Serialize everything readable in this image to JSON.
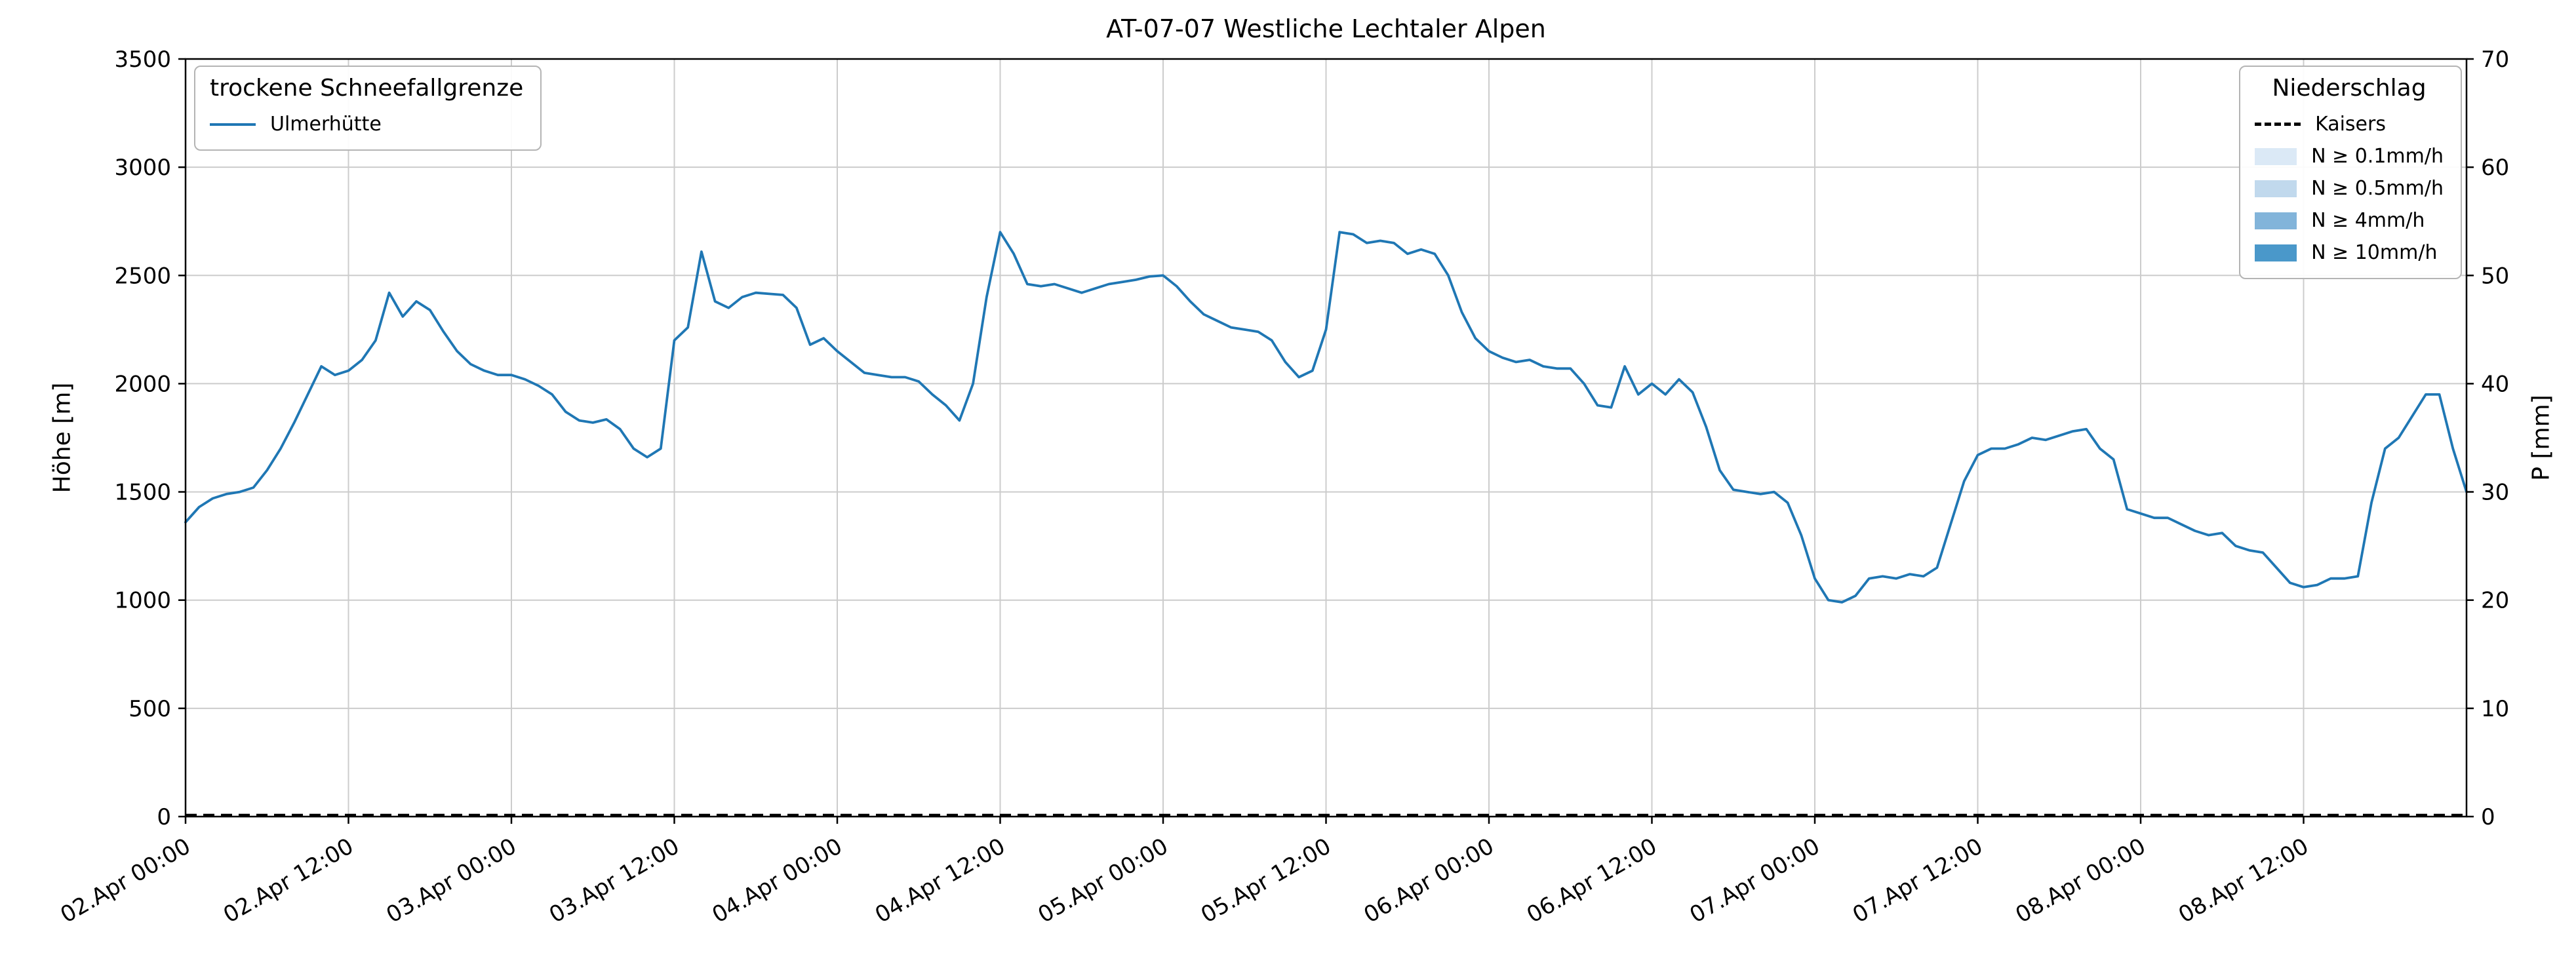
{
  "chart_data": {
    "type": "line",
    "title": "AT-07-07 Westliche Lechtaler Alpen",
    "xlabel": "",
    "ylabel_left": "Höhe [m]",
    "ylabel_right": "P [mm]",
    "ylim_left": [
      0,
      3500
    ],
    "ylim_right": [
      0,
      70
    ],
    "yticks_left": [
      0,
      500,
      1000,
      1500,
      2000,
      2500,
      3000,
      3500
    ],
    "yticks_right": [
      0,
      10,
      20,
      30,
      40,
      50,
      60,
      70
    ],
    "grid": true,
    "x_unit": "hours since 02.Apr 00:00",
    "xlim": [
      0,
      168
    ],
    "x_tick_rotation_deg": 30,
    "xticks": {
      "hours": [
        0,
        12,
        24,
        36,
        48,
        60,
        72,
        84,
        96,
        108,
        120,
        132,
        144,
        156
      ],
      "labels": [
        "02.Apr 00:00",
        "02.Apr 12:00",
        "03.Apr 00:00",
        "03.Apr 12:00",
        "04.Apr 00:00",
        "04.Apr 12:00",
        "05.Apr 00:00",
        "05.Apr 12:00",
        "06.Apr 00:00",
        "06.Apr 12:00",
        "07.Apr 00:00",
        "07.Apr 12:00",
        "08.Apr 00:00",
        "08.Apr 12:00"
      ]
    },
    "series": [
      {
        "name": "Ulmerhütte",
        "axis": "left",
        "color": "#1f77b4",
        "style": "solid",
        "x_start_hour": 0,
        "x_step_hours": 1,
        "values": [
          1360,
          1430,
          1470,
          1490,
          1500,
          1520,
          1600,
          1700,
          1820,
          1950,
          2080,
          2040,
          2060,
          2110,
          2200,
          2420,
          2310,
          2380,
          2340,
          2240,
          2150,
          2090,
          2060,
          2040,
          2040,
          2020,
          1990,
          1950,
          1870,
          1830,
          1820,
          1835,
          1790,
          1700,
          1660,
          1700,
          2200,
          2260,
          2610,
          2380,
          2350,
          2400,
          2420,
          2415,
          2410,
          2350,
          2180,
          2210,
          2150,
          2100,
          2050,
          2040,
          2030,
          2030,
          2010,
          1950,
          1900,
          1830,
          2000,
          2400,
          2700,
          2600,
          2460,
          2450,
          2460,
          2440,
          2420,
          2440,
          2460,
          2470,
          2480,
          2495,
          2500,
          2450,
          2380,
          2320,
          2290,
          2260,
          2250,
          2240,
          2200,
          2100,
          2030,
          2060,
          2250,
          2700,
          2690,
          2650,
          2660,
          2650,
          2600,
          2620,
          2600,
          2500,
          2330,
          2210,
          2150,
          2120,
          2100,
          2110,
          2080,
          2070,
          2070,
          2000,
          1900,
          1890,
          2080,
          1950,
          2000,
          1950,
          2020,
          1960,
          1800,
          1600,
          1510,
          1500,
          1490,
          1500,
          1450,
          1300,
          1100,
          1000,
          990,
          1020,
          1100,
          1110,
          1100,
          1120,
          1110,
          1150,
          1350,
          1550,
          1670,
          1700,
          1700,
          1720,
          1750,
          1740,
          1760,
          1780,
          1790,
          1700,
          1650,
          1420,
          1400,
          1380,
          1380,
          1350,
          1320,
          1300,
          1310,
          1250,
          1230,
          1220,
          1150,
          1080,
          1060,
          1070,
          1100,
          1100,
          1110,
          1450,
          1700,
          1750,
          1850,
          1950,
          1950,
          1700,
          1500
        ]
      },
      {
        "name": "Kaisers",
        "axis": "right",
        "color": "#000000",
        "style": "dashed",
        "values_constant": 0
      }
    ],
    "legends": {
      "snowline": {
        "title": "trockene Schneefallgrenze",
        "position": "upper left",
        "items": [
          {
            "label": "Ulmerhütte",
            "color": "#1f77b4",
            "style": "solid-line"
          }
        ]
      },
      "precip": {
        "title": "Niederschlag",
        "position": "upper right",
        "items": [
          {
            "label": "Kaisers",
            "color": "#000000",
            "style": "dashed-line"
          },
          {
            "label": "N ≥ 0.1mm/h",
            "color": "#dbe9f6",
            "style": "patch"
          },
          {
            "label": "N ≥ 0.5mm/h",
            "color": "#c1d9ed",
            "style": "patch"
          },
          {
            "label": "N ≥ 4mm/h",
            "color": "#82b4da",
            "style": "patch"
          },
          {
            "label": "N ≥ 10mm/h",
            "color": "#4a98ca",
            "style": "patch"
          }
        ]
      }
    },
    "colors": {
      "grid": "#cccccc",
      "frame": "#000000",
      "background": "#ffffff"
    }
  }
}
